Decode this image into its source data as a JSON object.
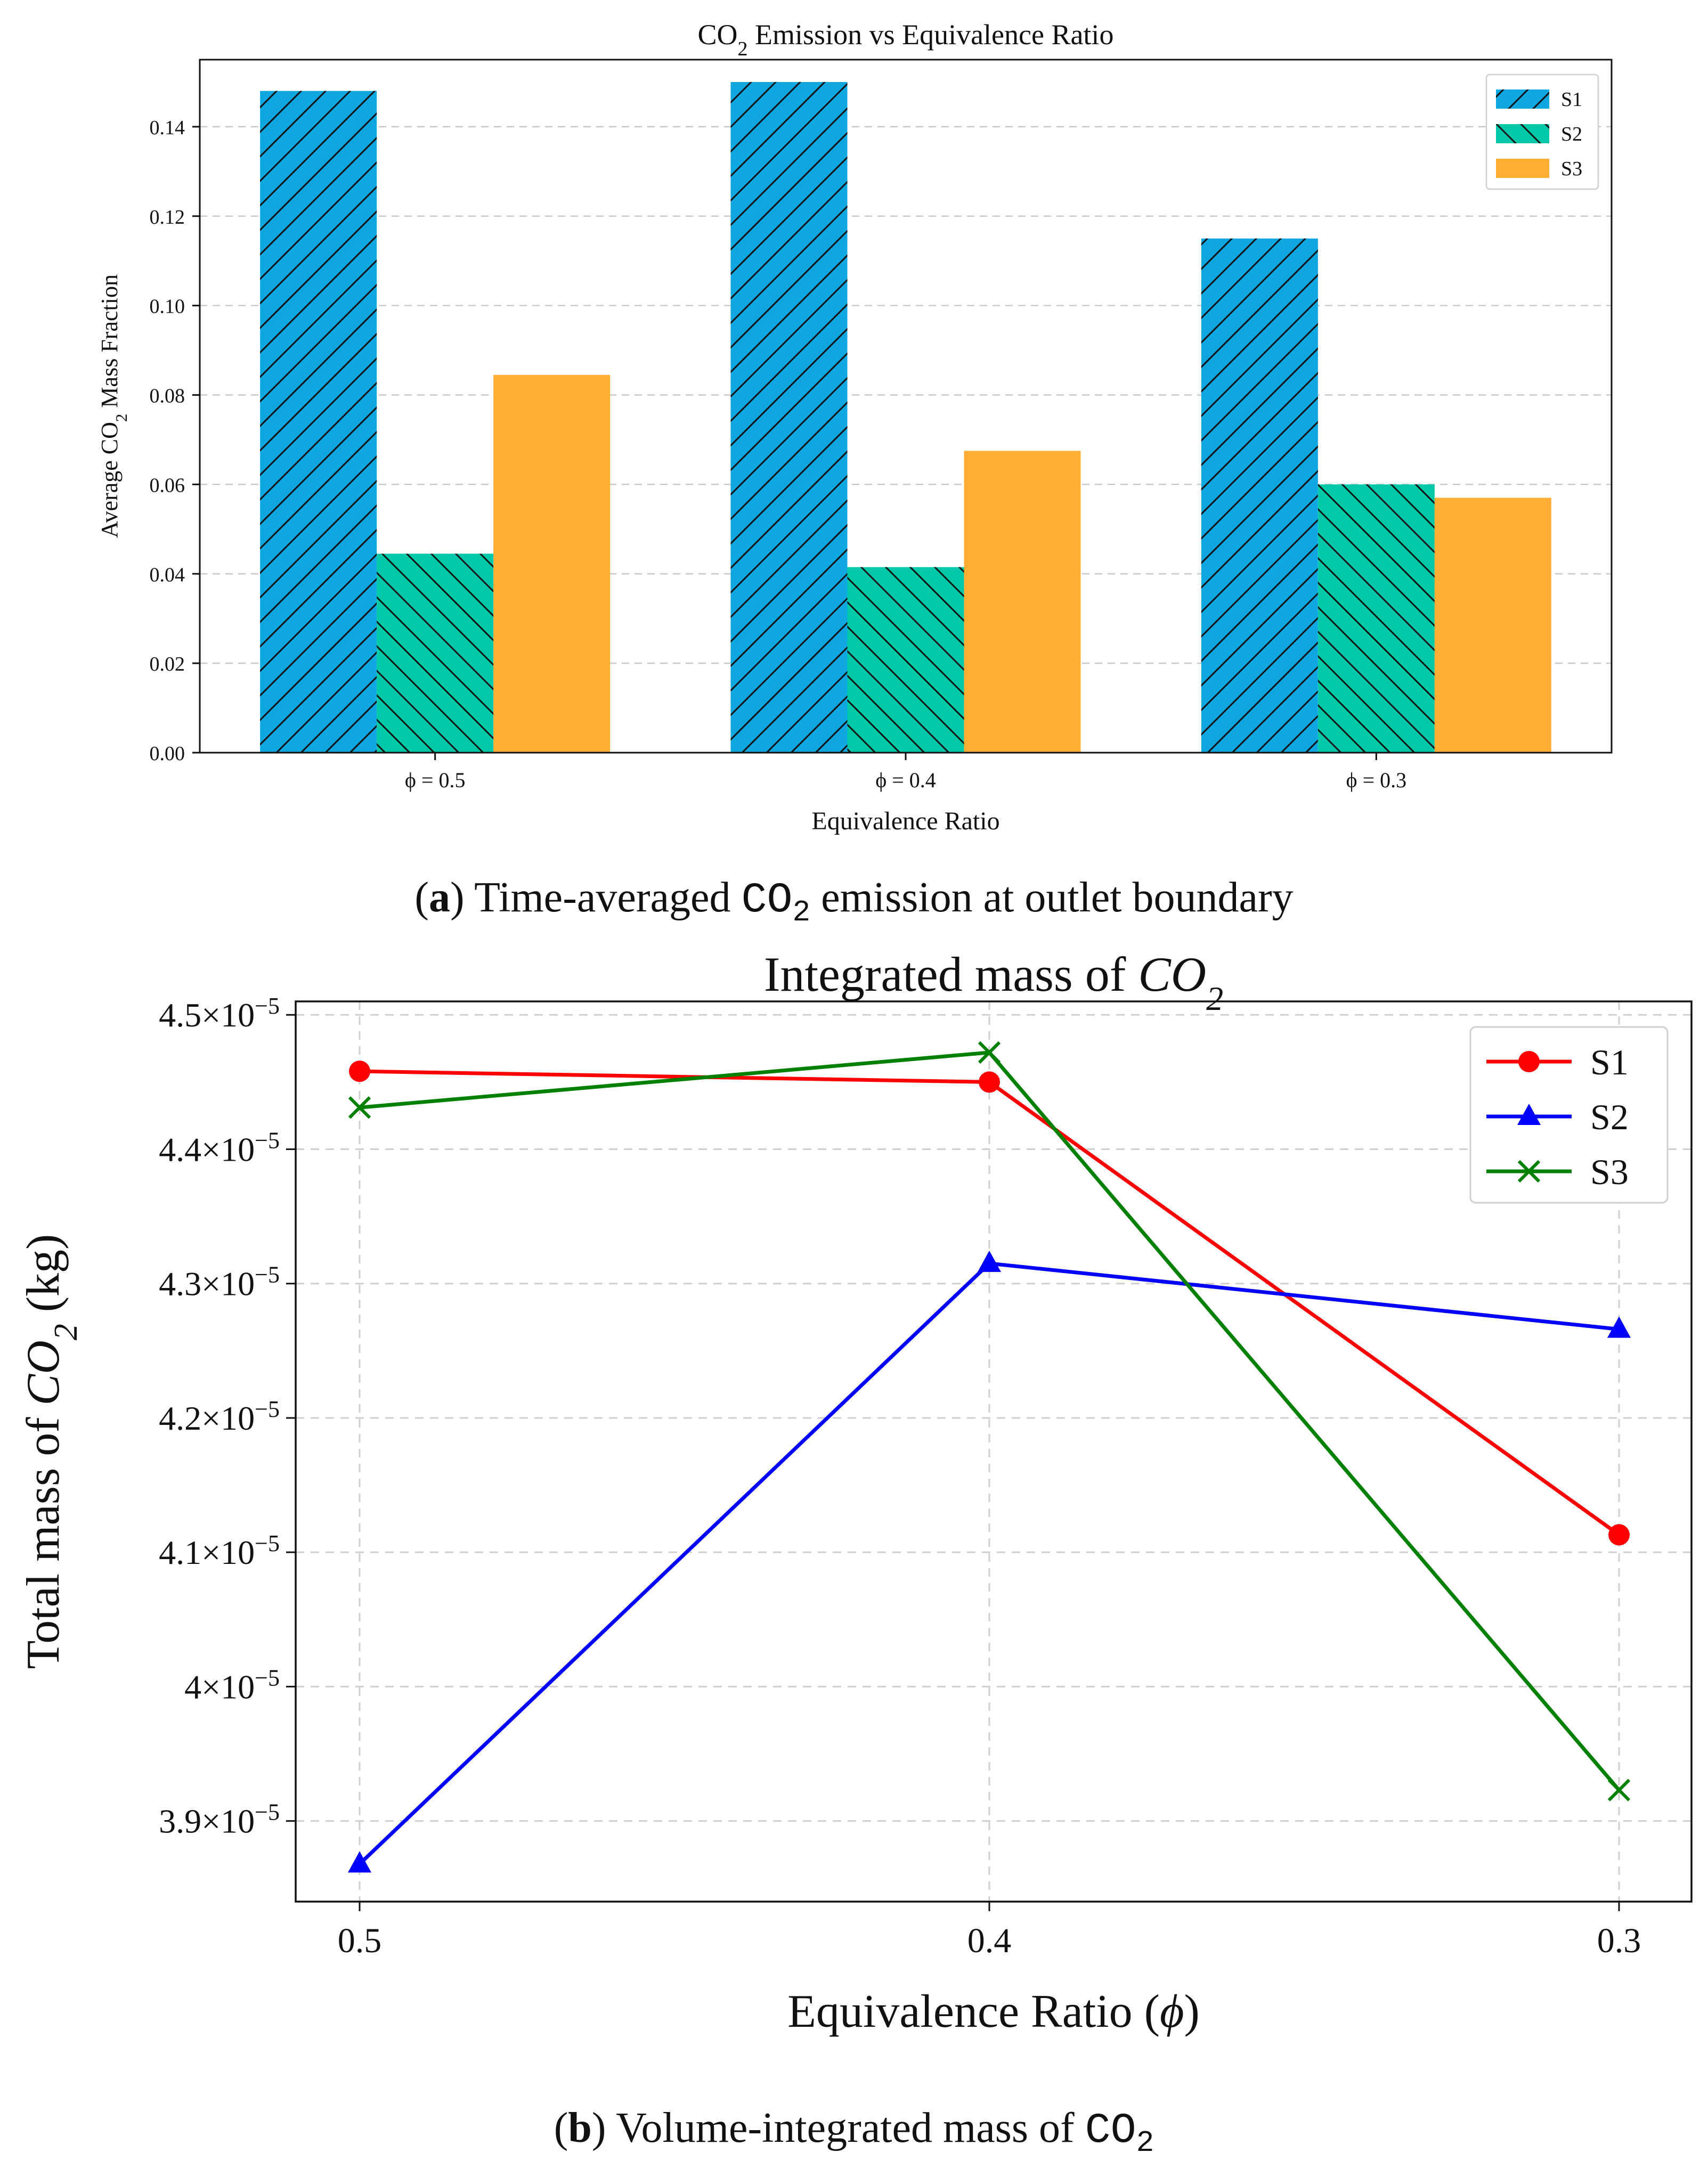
{
  "chart_data": [
    {
      "id": "a",
      "type": "bar",
      "title_main": "CO",
      "title_sub": "2",
      "title_rest": " Emission vs Equivalence Ratio",
      "xlabel": "Equivalence Ratio",
      "ylabel_main": "Average CO",
      "ylabel_sub": "2",
      "ylabel_rest": " Mass Fraction",
      "categories": [
        "ϕ = 0.5",
        "ϕ = 0.4",
        "ϕ = 0.3"
      ],
      "ylim": [
        0,
        0.155
      ],
      "yticks": [
        0.0,
        0.02,
        0.04,
        0.06,
        0.08,
        0.1,
        0.12,
        0.14
      ],
      "ytick_labels": [
        "0.00",
        "0.02",
        "0.04",
        "0.06",
        "0.08",
        "0.10",
        "0.12",
        "0.14"
      ],
      "grid": true,
      "legend_position": "top-right",
      "series": [
        {
          "name": "S1",
          "color": "#0fa7e0",
          "hatch": "forward",
          "values": [
            0.148,
            0.15,
            0.115
          ]
        },
        {
          "name": "S2",
          "color": "#00c8a9",
          "hatch": "back",
          "values": [
            0.0445,
            0.0415,
            0.06
          ]
        },
        {
          "name": "S3",
          "color": "#ffad33",
          "hatch": "none",
          "values": [
            0.0845,
            0.0675,
            0.057
          ]
        }
      ]
    },
    {
      "id": "b",
      "type": "line",
      "title_main": "Integrated mass of ",
      "title_italic": "CO",
      "title_sub": "2",
      "xlabel_main": "Equivalence Ratio (",
      "xlabel_italic": "ϕ",
      "xlabel_rest": ")",
      "ylabel_main": "Total mass of ",
      "ylabel_italic": "CO",
      "ylabel_sub": "2",
      "ylabel_rest": " (kg)",
      "x": [
        0.5,
        0.4,
        0.3
      ],
      "x_tick_labels": [
        "0.5",
        "0.4",
        "0.3"
      ],
      "ylim": [
        3.84e-05,
        4.51e-05
      ],
      "yticks": [
        3.9e-05,
        4e-05,
        4.1e-05,
        4.2e-05,
        4.3e-05,
        4.4e-05,
        4.5e-05
      ],
      "ytick_labels": [
        {
          "mantissa": "3.9",
          "exp": "−5"
        },
        {
          "mantissa": "4",
          "exp": "−5"
        },
        {
          "mantissa": "4.1",
          "exp": "−5"
        },
        {
          "mantissa": "4.2",
          "exp": "−5"
        },
        {
          "mantissa": "4.3",
          "exp": "−5"
        },
        {
          "mantissa": "4.4",
          "exp": "−5"
        },
        {
          "mantissa": "4.5",
          "exp": "−5"
        }
      ],
      "times_sign": "×10",
      "grid": true,
      "legend_position": "top-right",
      "series": [
        {
          "name": "S1",
          "color": "#ff0000",
          "marker": "circle",
          "values": [
            4.458e-05,
            4.45e-05,
            4.113e-05
          ]
        },
        {
          "name": "S2",
          "color": "#0000ff",
          "marker": "triangle",
          "values": [
            3.868e-05,
            4.315e-05,
            4.266e-05
          ]
        },
        {
          "name": "S3",
          "color": "#008000",
          "marker": "x",
          "values": [
            4.431e-05,
            4.472e-05,
            3.923e-05
          ]
        }
      ]
    }
  ],
  "captions": {
    "a": {
      "label": "a",
      "text_before": "Time-averaged ",
      "chem_main": "CO",
      "chem_sub": "2",
      "text_after": " emission at outlet boundary"
    },
    "b": {
      "label": "b",
      "text_before": "Volume-integrated mass of ",
      "chem_main": "CO",
      "chem_sub": "2"
    }
  }
}
